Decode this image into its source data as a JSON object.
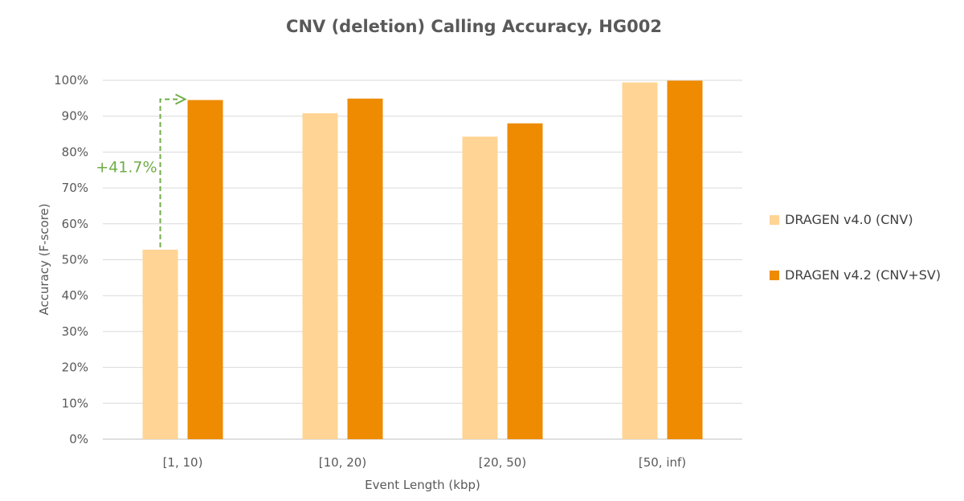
{
  "chart_data": {
    "type": "bar",
    "title": "CNV (deletion) Calling Accuracy, HG002",
    "xlabel": "Event Length (kbp)",
    "ylabel": "Accuracy (F-score)",
    "categories": [
      "[1, 10)",
      "[10, 20)",
      "[20, 50)",
      "[50, inf)"
    ],
    "ylim": [
      0,
      100
    ],
    "yticks": [
      0,
      10,
      20,
      30,
      40,
      50,
      60,
      70,
      80,
      90,
      100
    ],
    "ytick_labels": [
      "0%",
      "10%",
      "20%",
      "30%",
      "40%",
      "50%",
      "60%",
      "70%",
      "80%",
      "90%",
      "100%"
    ],
    "grid": true,
    "legend_position": "right",
    "series": [
      {
        "name": "DRAGEN v4.0 (CNV)",
        "color": "#FFD494",
        "values": [
          52.8,
          90.8,
          84.3,
          99.4
        ]
      },
      {
        "name": "DRAGEN v4.2 (CNV+SV)",
        "color": "#EE8B00",
        "values": [
          94.5,
          94.9,
          88.0,
          99.9
        ]
      }
    ],
    "annotation": {
      "text": "+41.7%",
      "color": "#70AD47",
      "category": "[1, 10)",
      "from_value": 52.8,
      "to_value": 94.5
    }
  }
}
